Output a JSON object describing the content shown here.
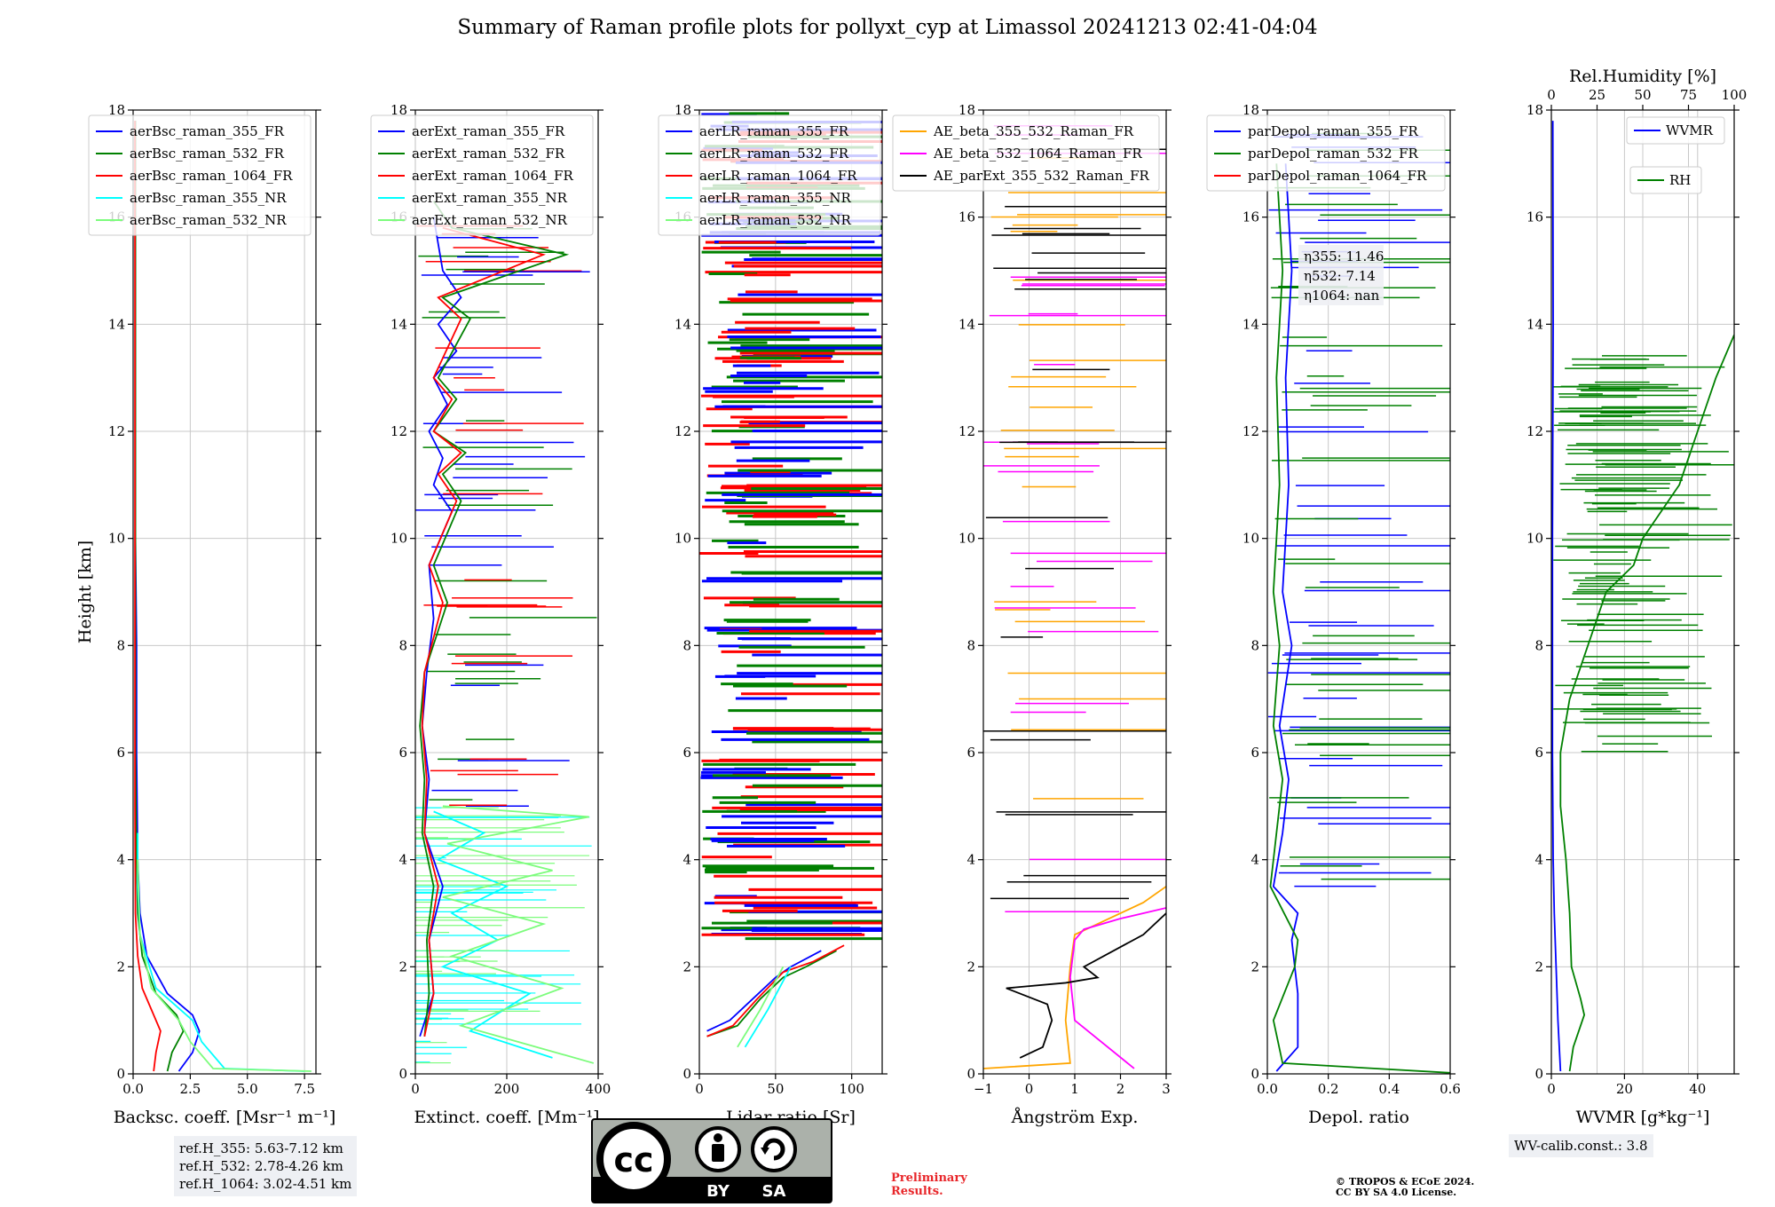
{
  "figure": {
    "title": "Summary of Raman profile plots for pollyxt_cyp at Limassol 20241213 02:41-04:04",
    "ref_lines": [
      "ref.H_355: 5.63-7.12 km",
      "ref.H_532: 2.78-4.26 km",
      "ref.H_1064: 3.02-4.51 km"
    ],
    "wv_calib": "WV-calib.const.: 3.8",
    "preliminary": [
      "Preliminary",
      "Results."
    ],
    "copyright": [
      "© TROPOS & ECoE 2024.",
      "CC BY SA 4.0 License."
    ],
    "license_badge": {
      "by": "BY",
      "sa": "SA",
      "cc": "cc"
    }
  },
  "chart_data": [
    {
      "type": "line",
      "panel": "backscatter",
      "xlabel": "Backsc. coeff. [Msr⁻¹ m⁻¹]",
      "ylabel": "Height [km]",
      "xlim": [
        0,
        8
      ],
      "ylim": [
        0,
        18
      ],
      "xticks": [
        0,
        2.5,
        5,
        7.5
      ],
      "xticklabels": [
        "0.0",
        "2.5",
        "5.0",
        "7.5"
      ],
      "yticks": [
        0,
        2,
        4,
        6,
        8,
        10,
        12,
        14,
        16,
        18
      ],
      "legend": [
        "aerBsc_raman_355_FR",
        "aerBsc_raman_532_FR",
        "aerBsc_raman_1064_FR",
        "aerBsc_raman_355_NR",
        "aerBsc_raman_532_NR"
      ],
      "series": [
        {
          "name": "aerBsc_raman_355_FR",
          "color": "#0000ff",
          "x": [
            2.0,
            2.6,
            2.9,
            2.6,
            1.5,
            0.6,
            0.3,
            0.2,
            0.15,
            0.15,
            0.1,
            0.1,
            0.1,
            0.1
          ],
          "y": [
            0.05,
            0.4,
            0.8,
            1.1,
            1.5,
            2.2,
            3,
            4,
            6,
            8,
            10,
            12,
            14,
            17.8
          ]
        },
        {
          "name": "aerBsc_raman_532_FR",
          "color": "#008000",
          "x": [
            1.5,
            1.7,
            2.2,
            1.9,
            1.0,
            0.4,
            0.2,
            0.15,
            0.1,
            0.1,
            0.1,
            0.1
          ],
          "y": [
            0.05,
            0.4,
            0.8,
            1.1,
            1.5,
            2.2,
            3,
            4,
            6,
            8,
            12,
            17.8
          ]
        },
        {
          "name": "aerBsc_raman_1064_FR",
          "color": "#ff0000",
          "x": [
            0.9,
            1.0,
            1.2,
            0.8,
            0.4,
            0.2,
            0.1,
            0.08,
            0.08,
            0.08
          ],
          "y": [
            0.05,
            0.4,
            0.8,
            1.2,
            1.6,
            2.2,
            3,
            5,
            10,
            17.8
          ]
        },
        {
          "name": "aerBsc_raman_355_NR",
          "color": "#00ffff",
          "x": [
            7.5,
            4.0,
            3.0,
            2.6,
            1.0,
            0.3,
            0.2,
            0.2
          ],
          "y": [
            0.05,
            0.1,
            0.6,
            1.0,
            1.6,
            2.6,
            3.5,
            4.5
          ]
        },
        {
          "name": "aerBsc_raman_532_NR",
          "color": "#7cfc7c",
          "x": [
            7.8,
            3.5,
            2.5,
            2.0,
            0.8,
            0.3,
            0.2
          ],
          "y": [
            0.05,
            0.1,
            0.6,
            1.0,
            1.6,
            2.6,
            4.0
          ]
        }
      ]
    },
    {
      "type": "line",
      "panel": "extinction",
      "xlabel": "Extinct. coeff. [Mm⁻¹]",
      "xlim": [
        0,
        400
      ],
      "ylim": [
        0,
        18
      ],
      "xticks": [
        0,
        200,
        400
      ],
      "xticklabels": [
        "0",
        "200",
        "400"
      ],
      "yticks": [
        0,
        2,
        4,
        6,
        8,
        10,
        12,
        14,
        16,
        18
      ],
      "legend": [
        "aerExt_raman_355_FR",
        "aerExt_raman_532_FR",
        "aerExt_raman_1064_FR",
        "aerExt_raman_355_NR",
        "aerExt_raman_532_NR"
      ],
      "series": [
        {
          "name": "aerExt_raman_355_FR",
          "color": "#0000ff",
          "x": [
            10,
            40,
            30,
            60,
            20,
            30,
            15,
            25,
            40,
            30,
            80,
            40,
            60,
            30,
            70,
            40,
            90,
            50,
            100,
            60,
            40
          ],
          "y": [
            0.7,
            1.5,
            2.5,
            3.5,
            4.5,
            5.5,
            6.5,
            7.5,
            8.5,
            9.5,
            10.5,
            11,
            11.5,
            12,
            12.5,
            13,
            13.5,
            14,
            14.5,
            15,
            16
          ]
        },
        {
          "name": "aerExt_raman_532_FR",
          "color": "#008000",
          "x": [
            20,
            30,
            25,
            40,
            15,
            20,
            10,
            20,
            70,
            40,
            100,
            60,
            110,
            40,
            90,
            50,
            120,
            60,
            330,
            80,
            40
          ],
          "y": [
            0.7,
            1.5,
            2.5,
            3.5,
            4.5,
            5.5,
            6.5,
            7.5,
            8.8,
            9.5,
            10.7,
            11.2,
            11.6,
            12,
            12.6,
            13,
            14.1,
            14.5,
            15.3,
            15.8,
            16.3
          ]
        },
        {
          "name": "aerExt_raman_1064_FR",
          "color": "#ff0000",
          "x": [
            20,
            40,
            30,
            50,
            20,
            25,
            15,
            20,
            60,
            30,
            90,
            50,
            100,
            40,
            80,
            40,
            100,
            50,
            280,
            60
          ],
          "y": [
            0.7,
            1.5,
            2.5,
            3.5,
            4.5,
            5.5,
            6.5,
            7.5,
            8.8,
            9.5,
            10.7,
            11.2,
            11.6,
            12,
            12.6,
            13,
            14.1,
            14.5,
            15.3,
            15.8
          ]
        },
        {
          "name": "aerExt_raman_355_NR",
          "color": "#00ffff",
          "x": [
            300,
            120,
            250,
            60,
            180,
            80,
            200,
            50,
            150,
            40
          ],
          "y": [
            0.3,
            0.8,
            1.5,
            2.0,
            2.5,
            3.0,
            3.5,
            4.0,
            4.5,
            4.9
          ]
        },
        {
          "name": "aerExt_raman_532_NR",
          "color": "#7cfc7c",
          "x": [
            390,
            100,
            320,
            80,
            280,
            60,
            300,
            70,
            380,
            60
          ],
          "y": [
            0.2,
            0.9,
            1.6,
            2.2,
            2.8,
            3.3,
            3.8,
            4.3,
            4.8,
            5.0
          ]
        }
      ]
    },
    {
      "type": "line",
      "panel": "lidar_ratio",
      "xlabel": "Lidar ratio [Sr]",
      "xlim": [
        0,
        120
      ],
      "ylim": [
        0,
        18
      ],
      "xticks": [
        0,
        50,
        100
      ],
      "xticklabels": [
        "0",
        "50",
        "100"
      ],
      "yticks": [
        0,
        2,
        4,
        6,
        8,
        10,
        12,
        14,
        16,
        18
      ],
      "legend": [
        "aerLR_raman_355_FR",
        "aerLR_raman_532_FR",
        "aerLR_raman_1064_FR",
        "aerLR_raman_355_NR",
        "aerLR_raman_532_NR"
      ],
      "series": [
        {
          "name": "aerLR_raman_355_FR",
          "color": "#0000ff",
          "x": [
            5,
            20,
            35,
            50,
            60,
            80
          ],
          "y": [
            0.8,
            1.0,
            1.4,
            1.8,
            2.0,
            2.3
          ]
        },
        {
          "name": "aerLR_raman_532_FR",
          "color": "#008000",
          "x": [
            5,
            25,
            40,
            55,
            70,
            90
          ],
          "y": [
            0.7,
            0.9,
            1.4,
            1.8,
            2.0,
            2.3
          ]
        },
        {
          "name": "aerLR_raman_1064_FR",
          "color": "#ff0000",
          "x": [
            5,
            22,
            38,
            55,
            75,
            95
          ],
          "y": [
            0.7,
            0.9,
            1.4,
            1.9,
            2.1,
            2.4
          ]
        },
        {
          "name": "aerLR_raman_355_NR",
          "color": "#00ffff",
          "x": [
            30,
            45,
            60
          ],
          "y": [
            0.5,
            1.2,
            2.0
          ]
        },
        {
          "name": "aerLR_raman_532_NR",
          "color": "#7cfc7c",
          "x": [
            25,
            40,
            55
          ],
          "y": [
            0.5,
            1.2,
            2.0
          ]
        }
      ]
    },
    {
      "type": "line",
      "panel": "angstrom",
      "xlabel": "Ångström Exp.",
      "xlim": [
        -1,
        3
      ],
      "ylim": [
        0,
        18
      ],
      "xticks": [
        -1,
        0,
        1,
        2,
        3
      ],
      "xticklabels": [
        "−1",
        "0",
        "1",
        "2",
        "3"
      ],
      "yticks": [
        0,
        2,
        4,
        6,
        8,
        10,
        12,
        14,
        16,
        18
      ],
      "legend": [
        "AE_beta_355_532_Raman_FR",
        "AE_beta_532_1064_Raman_FR",
        "AE_parExt_355_532_Raman_FR"
      ],
      "series": [
        {
          "name": "AE_beta_355_532_Raman_FR",
          "color": "#ffa500",
          "x": [
            -1,
            0.9,
            0.8,
            0.9,
            1.0,
            1.5,
            2.5,
            3.0
          ],
          "y": [
            0.1,
            0.2,
            1.0,
            2.0,
            2.6,
            2.8,
            3.2,
            3.5
          ]
        },
        {
          "name": "AE_beta_532_1064_Raman_FR",
          "color": "#ff00ff",
          "x": [
            2.3,
            1.0,
            0.9,
            1.0,
            1.2,
            2.0,
            3.0
          ],
          "y": [
            0.1,
            1.0,
            1.8,
            2.5,
            2.7,
            2.9,
            3.1
          ]
        },
        {
          "name": "AE_parExt_355_532_Raman_FR",
          "color": "#000000",
          "x": [
            -0.2,
            0.3,
            0.5,
            0.4,
            -0.5,
            0.8,
            1.5,
            1.2,
            2.5,
            3.0
          ],
          "y": [
            0.3,
            0.5,
            1.0,
            1.3,
            1.6,
            1.7,
            1.8,
            2.0,
            2.6,
            3.0
          ]
        }
      ]
    },
    {
      "type": "line",
      "panel": "depolarization",
      "xlabel": "Depol. ratio",
      "xlim": [
        0,
        0.6
      ],
      "ylim": [
        0,
        18
      ],
      "xticks": [
        0,
        0.2,
        0.4,
        0.6
      ],
      "xticklabels": [
        "0.0",
        "0.2",
        "0.4",
        "0.6"
      ],
      "yticks": [
        0,
        2,
        4,
        6,
        8,
        10,
        12,
        14,
        16,
        18
      ],
      "legend": [
        "parDepol_raman_355_FR",
        "parDepol_raman_532_FR",
        "parDepol_raman_1064_FR"
      ],
      "annotation": [
        "η355: 11.46",
        "η532: 7.14",
        "η1064: nan"
      ],
      "series": [
        {
          "name": "parDepol_raman_355_FR",
          "color": "#0000ff",
          "x": [
            0.03,
            0.1,
            0.1,
            0.08,
            0.1,
            0.02,
            0.05,
            0.07,
            0.04,
            0.08,
            0.05,
            0.07,
            0.06,
            0.08,
            0.06
          ],
          "y": [
            0.05,
            0.5,
            1.5,
            2.5,
            3.0,
            3.5,
            4.5,
            5.5,
            6.5,
            8.0,
            9.0,
            11.0,
            13.0,
            15.0,
            17.0
          ]
        },
        {
          "name": "parDepol_raman_532_FR",
          "color": "#008000",
          "x": [
            0.6,
            0.05,
            0.02,
            0.09,
            0.1,
            0.01,
            0.03,
            0.05,
            0.02,
            0.04,
            0.02,
            0.04,
            0.03,
            0.05,
            0.03
          ],
          "y": [
            0.02,
            0.2,
            1.0,
            2.0,
            2.5,
            3.5,
            4.5,
            5.5,
            6.5,
            8.0,
            9.0,
            11.0,
            13.0,
            15.0,
            17.0
          ]
        }
      ]
    },
    {
      "type": "line",
      "panel": "water_vapor",
      "xlabel": "WVMR [g*kg⁻¹]",
      "x2label": "Rel.Humidity [%]",
      "xlim": [
        0,
        50
      ],
      "ylim": [
        0,
        18
      ],
      "x2lim": [
        0,
        100
      ],
      "xticks": [
        0,
        20,
        40
      ],
      "xticklabels": [
        "0",
        "20",
        "40"
      ],
      "x2ticks": [
        0,
        25,
        50,
        75,
        100
      ],
      "x2ticklabels": [
        "0",
        "25",
        "50",
        "75",
        "100"
      ],
      "yticks": [
        0,
        2,
        4,
        6,
        8,
        10,
        12,
        14,
        16,
        18
      ],
      "legend": [
        "WVMR",
        "RH"
      ],
      "series": [
        {
          "name": "WVMR",
          "color": "#0000ff",
          "x": [
            2.5,
            1.8,
            1.3,
            0.8,
            0.5,
            0.3,
            0.3,
            0.5,
            0.4
          ],
          "y": [
            0.05,
            1.0,
            2.0,
            3.0,
            4.0,
            6.0,
            10.0,
            14.0,
            17.8
          ]
        },
        {
          "name": "RH",
          "color": "#008000",
          "x2": [
            10,
            12,
            16,
            18,
            16,
            11,
            10,
            8,
            5,
            5,
            10,
            20,
            30,
            45,
            50,
            70,
            80,
            90,
            100
          ],
          "y": [
            0.05,
            0.5,
            0.9,
            1.1,
            1.4,
            2.0,
            3.0,
            4.0,
            5.0,
            6.0,
            7.0,
            8.0,
            9.0,
            9.5,
            10.0,
            11.0,
            12.0,
            13.0,
            13.8
          ]
        }
      ]
    }
  ]
}
